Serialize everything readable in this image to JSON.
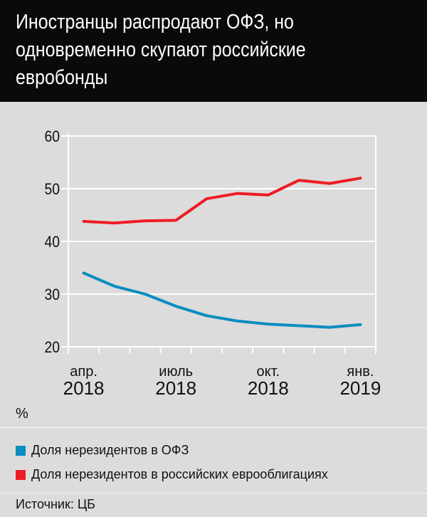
{
  "title": "Иностранцы распродают ОФЗ, но одновременно скупают российские евробонды",
  "unit": "%",
  "source": "Источник: ЦБ",
  "chart_data": {
    "type": "line",
    "title": "Иностранцы распродают ОФЗ, но одновременно скупают российские евробонды",
    "ylabel": "%",
    "ylim": [
      20,
      60
    ],
    "yticks": [
      20,
      30,
      40,
      50,
      60
    ],
    "grid": true,
    "legend_placement": "bottom",
    "x_tick_labels": [
      {
        "month": "апр.",
        "year": "2018"
      },
      {
        "month": "июль",
        "year": "2018"
      },
      {
        "month": "окт.",
        "year": "2018"
      },
      {
        "month": "янв.",
        "year": "2019"
      }
    ],
    "x": [
      "2018-04",
      "2018-05",
      "2018-06",
      "2018-07",
      "2018-08",
      "2018-09",
      "2018-10",
      "2018-11",
      "2018-12",
      "2019-01"
    ],
    "series": [
      {
        "name": "Доля нерезидентов в ОФЗ",
        "color": "#0a8dc0",
        "values": [
          34.0,
          31.5,
          30.0,
          27.7,
          25.9,
          24.9,
          24.3,
          24.0,
          23.7,
          24.2
        ]
      },
      {
        "name": "Доля нерезидентов в российских еврооблигациях",
        "color": "#ee1c25",
        "values": [
          43.8,
          43.5,
          43.9,
          44.0,
          48.1,
          49.1,
          48.8,
          51.6,
          51.0,
          52.0
        ]
      }
    ]
  }
}
